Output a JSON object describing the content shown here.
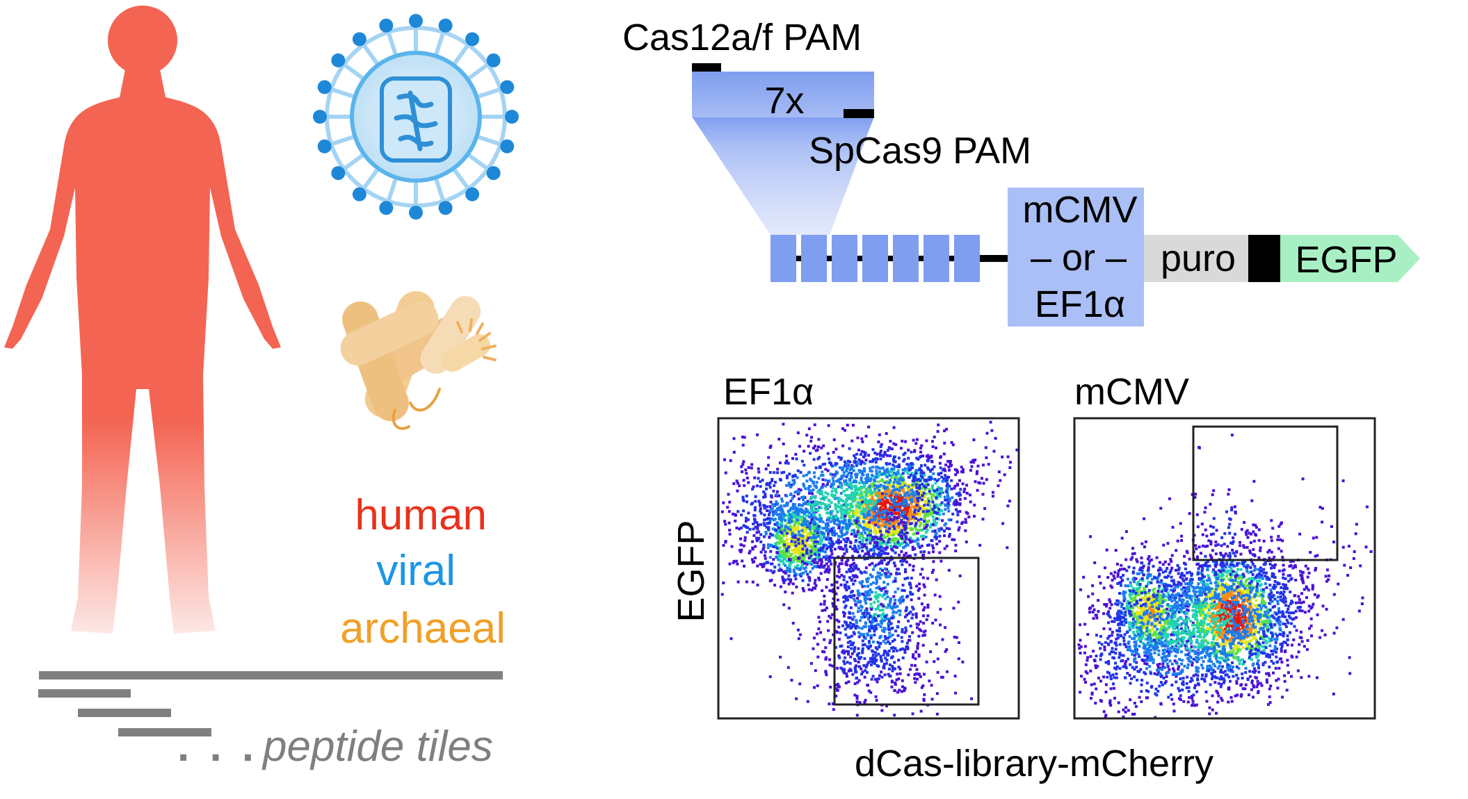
{
  "labels": {
    "cas12_pam": "Cas12a/f PAM",
    "repeat": "7x",
    "spcas9_pam": "SpCas9 PAM",
    "promoter_line1": "mCMV",
    "promoter_line2": "– or –",
    "promoter_line3": "EF1α",
    "puro": "puro",
    "egfp_gene": "EGFP",
    "plot1_title": "EF1α",
    "plot2_title": "mCMV",
    "y_axis": "EGFP",
    "x_axis": "dCas-library-mCherry",
    "source_human": "human",
    "source_viral": "viral",
    "source_archaeal": "archaeal",
    "tiles_dots": ". . .",
    "tiles": "peptide tiles"
  },
  "colors": {
    "human": "#e8321e",
    "viral": "#1a96e6",
    "archaeal": "#f0a028",
    "figure": "#f46452",
    "tiles": "#7f7f7f",
    "library_block": "#7f9ef0",
    "promoter_block": "#a9bff5",
    "puro_block": "#d9d9d9",
    "egfp_arrow": "#a8f0c4"
  },
  "icons": [
    "human-figure-icon",
    "virus-icon",
    "archaea-icon"
  ],
  "chart_data": [
    {
      "type": "scatter",
      "title": "EF1α",
      "xlabel": "dCas-library-mCherry",
      "ylabel": "EGFP",
      "note": "density flow cytometry plot; two populations, gate at lower right"
    },
    {
      "type": "scatter",
      "title": "mCMV",
      "xlabel": "dCas-library-mCherry",
      "ylabel": "EGFP",
      "note": "density flow cytometry plot; two populations, gate at upper right"
    }
  ]
}
